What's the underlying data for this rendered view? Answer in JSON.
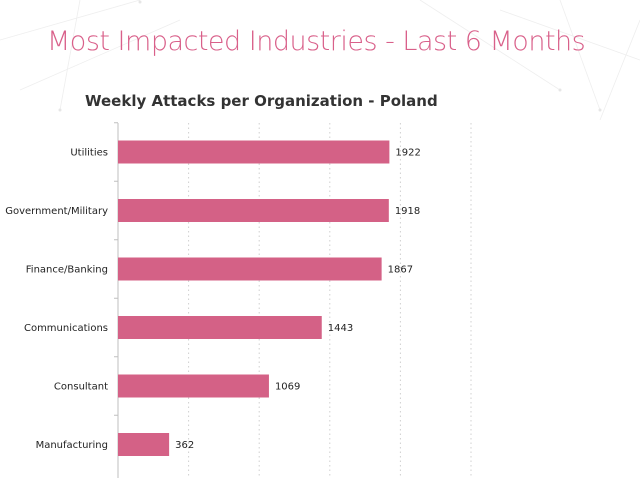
{
  "page": {
    "title": "Most Impacted Industries - Last 6 Months"
  },
  "colors": {
    "title": "#d9608a",
    "bar": "#d46186",
    "gridline": "#d0d0d0",
    "axis": "#bfbfbf"
  },
  "chart_data": {
    "type": "bar",
    "orientation": "horizontal",
    "title": "Weekly Attacks per Organization - Poland",
    "xlabel": "",
    "ylabel": "",
    "categories": [
      "Utilities",
      "Government/Military",
      "Finance/Banking",
      "Communications",
      "Consultant",
      "Manufacturing"
    ],
    "values": [
      1922,
      1918,
      1867,
      1443,
      1069,
      362
    ],
    "xlim": [
      0,
      2500
    ],
    "x_gridline_step": 500,
    "grid": "vertical dotted",
    "data_labels": true,
    "legend": "none"
  }
}
